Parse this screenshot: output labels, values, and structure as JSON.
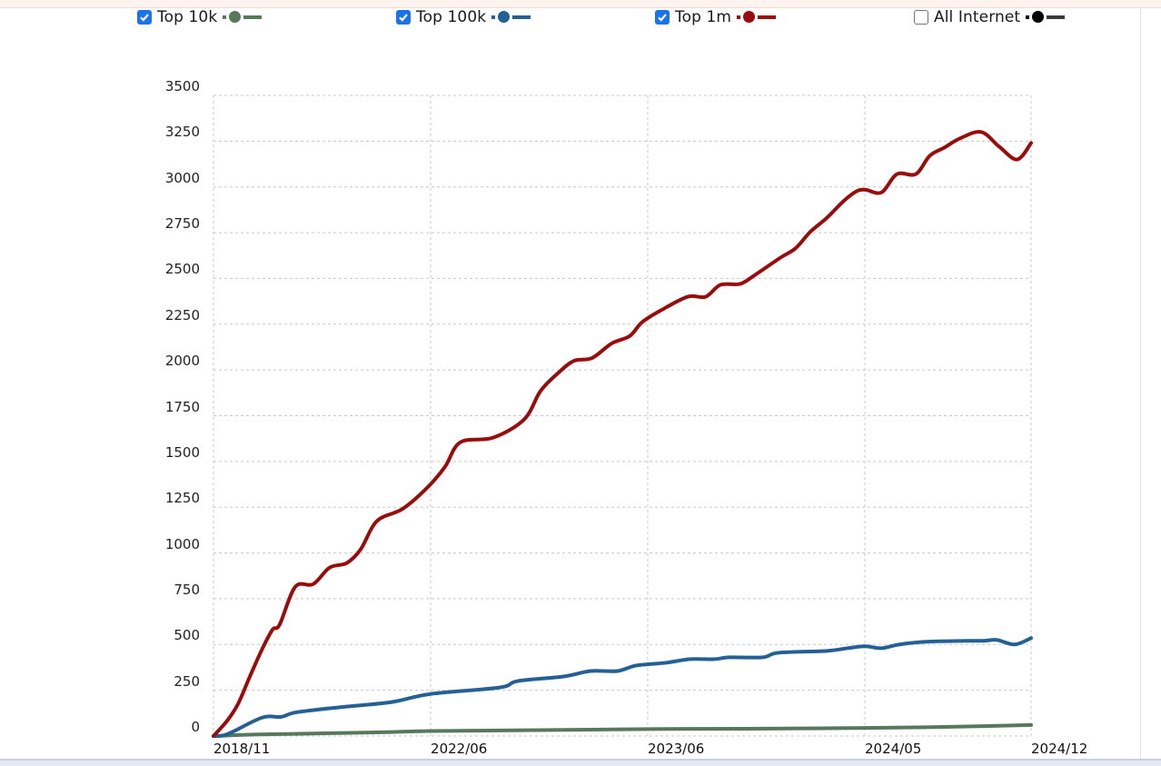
{
  "legend": [
    {
      "label": "Top 10k",
      "checked": true,
      "color": "#57785a"
    },
    {
      "label": "Top 100k",
      "checked": true,
      "color": "#245f96"
    },
    {
      "label": "Top 1m",
      "checked": true,
      "color": "#990c0c"
    },
    {
      "label": "All Internet",
      "checked": false,
      "color": "#000000",
      "bar_color": "#3a3a3a"
    }
  ],
  "chart_data": {
    "type": "line",
    "title": "",
    "xlabel": "",
    "ylabel": "",
    "ylim": [
      0,
      3500
    ],
    "yticks": [
      0,
      250,
      500,
      750,
      1000,
      1250,
      1500,
      1750,
      2000,
      2250,
      2500,
      2750,
      3000,
      3250,
      3500
    ],
    "x_tick_labels": [
      "2018/11",
      "2022/06",
      "2023/06",
      "2024/05",
      "2024/12"
    ],
    "x_tick_positions": [
      0,
      0.2656,
      0.5311,
      0.7967,
      1.0
    ],
    "grid": true,
    "legend_position": "top",
    "series": [
      {
        "name": "Top 1m",
        "color": "#990c0c",
        "visible": true,
        "x": [
          0,
          0.017,
          0.03,
          0.044,
          0.059,
          0.072,
          0.081,
          0.1,
          0.122,
          0.142,
          0.163,
          0.18,
          0.2,
          0.231,
          0.261,
          0.283,
          0.302,
          0.342,
          0.38,
          0.4,
          0.422,
          0.441,
          0.463,
          0.487,
          0.509,
          0.524,
          0.547,
          0.58,
          0.602,
          0.62,
          0.644,
          0.661,
          0.694,
          0.712,
          0.73,
          0.75,
          0.77,
          0.786,
          0.797,
          0.817,
          0.836,
          0.859,
          0.876,
          0.894,
          0.913,
          0.939,
          0.961,
          0.983,
          1.0
        ],
        "values": [
          0,
          85,
          175,
          320,
          470,
          580,
          610,
          815,
          830,
          920,
          945,
          1020,
          1175,
          1240,
          1355,
          1470,
          1605,
          1630,
          1730,
          1885,
          1985,
          2050,
          2065,
          2145,
          2185,
          2260,
          2325,
          2400,
          2400,
          2465,
          2470,
          2515,
          2615,
          2665,
          2755,
          2830,
          2920,
          2975,
          2985,
          2970,
          3070,
          3070,
          3170,
          3215,
          3265,
          3300,
          3220,
          3150,
          3240
        ]
      },
      {
        "name": "Top 100k",
        "color": "#245f96",
        "visible": true,
        "x": [
          0,
          0.017,
          0.059,
          0.083,
          0.102,
          0.161,
          0.217,
          0.266,
          0.35,
          0.372,
          0.428,
          0.461,
          0.494,
          0.517,
          0.553,
          0.583,
          0.613,
          0.631,
          0.672,
          0.691,
          0.75,
          0.776,
          0.797,
          0.817,
          0.839,
          0.872,
          0.92,
          0.942,
          0.958,
          0.98,
          1.0
        ],
        "values": [
          0,
          10,
          100,
          105,
          130,
          160,
          185,
          230,
          265,
          300,
          325,
          355,
          355,
          385,
          400,
          420,
          420,
          430,
          430,
          455,
          465,
          480,
          490,
          480,
          500,
          515,
          520,
          520,
          525,
          500,
          535
        ]
      },
      {
        "name": "Top 10k",
        "color": "#57785a",
        "visible": true,
        "x": [
          0,
          0.05,
          0.1,
          0.2,
          0.266,
          0.4,
          0.531,
          0.65,
          0.797,
          0.9,
          1.0
        ],
        "values": [
          0,
          8,
          12,
          20,
          27,
          32,
          38,
          40,
          44,
          50,
          60
        ]
      },
      {
        "name": "All Internet",
        "color": "#000000",
        "visible": false,
        "x": [],
        "values": []
      }
    ]
  }
}
